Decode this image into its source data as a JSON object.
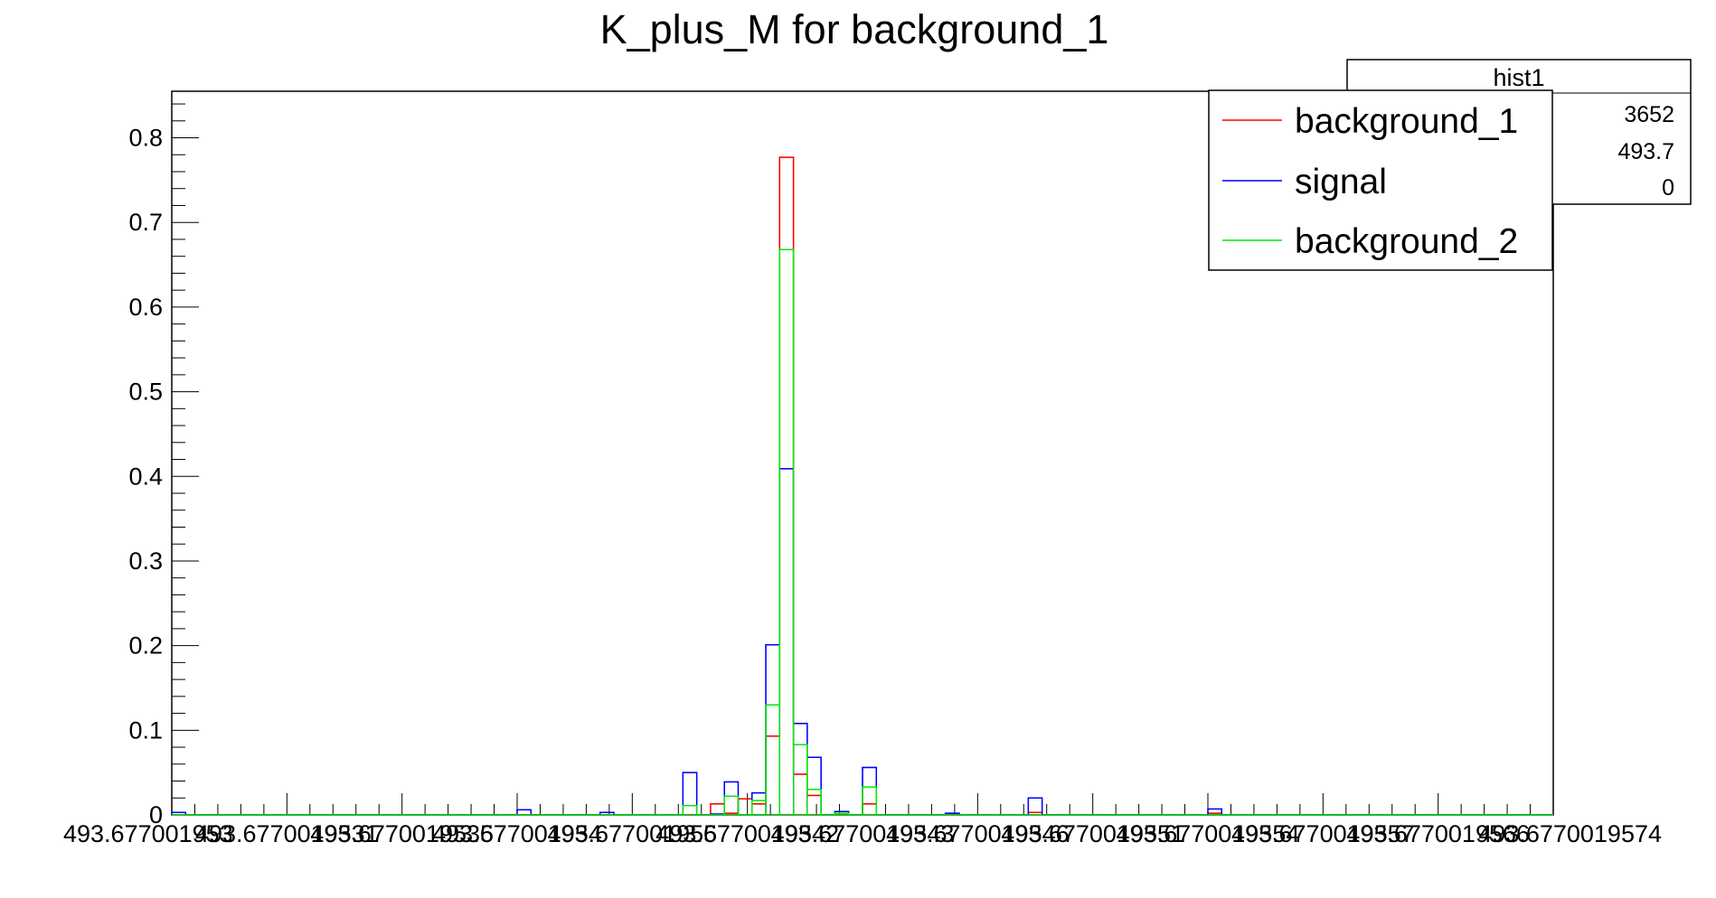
{
  "chart_data": {
    "type": "histogram",
    "title": "K_plus_M for background_1",
    "xlabel": "",
    "ylabel": "",
    "ylim": [
      0,
      0.855
    ],
    "yticks": [
      "0",
      "0.1",
      "0.2",
      "0.3",
      "0.4",
      "0.5",
      "0.6",
      "0.7",
      "0.8"
    ],
    "xtick_labels": [
      "493.677001953",
      "493.6770019531",
      "493.6770019535",
      "493.677001954",
      "493.677001955",
      "493.6770019542",
      "493.6770019543",
      "493.6770019546",
      "493.6770019551",
      "493.6770019554",
      "493.6770019557",
      "493.6770019566",
      "493.6770019574"
    ],
    "grid": false,
    "legend_position": "top-right",
    "nbins": 100,
    "series": [
      {
        "name": "background_1",
        "color": "#ff0000",
        "bins": {
          "37": 0.0,
          "39": 0.013,
          "40": 0.002,
          "41": 0.019,
          "42": 0.013,
          "43": 0.093,
          "44": 0.777,
          "45": 0.048,
          "46": 0.023,
          "48": 0.0,
          "50": 0.013,
          "56": 0.001,
          "62": 0.003,
          "75": 0.002
        }
      },
      {
        "name": "signal",
        "color": "#0000ff",
        "bins": {
          "0": 0.003,
          "25": 0.006,
          "31": 0.003,
          "37": 0.05,
          "39": 0.001,
          "40": 0.039,
          "42": 0.026,
          "43": 0.201,
          "44": 0.409,
          "45": 0.108,
          "46": 0.068,
          "48": 0.004,
          "50": 0.056,
          "56": 0.002,
          "62": 0.02,
          "75": 0.007
        }
      },
      {
        "name": "background_2",
        "color": "#00ee00",
        "bins": {
          "37": 0.011,
          "40": 0.022,
          "42": 0.017,
          "43": 0.13,
          "44": 0.668,
          "45": 0.083,
          "46": 0.03,
          "48": 0.002,
          "50": 0.033
        }
      }
    ]
  },
  "stats_box": {
    "title": "hist1",
    "entries_value": "3652",
    "mean_value": "493.7",
    "std_value": "0"
  }
}
